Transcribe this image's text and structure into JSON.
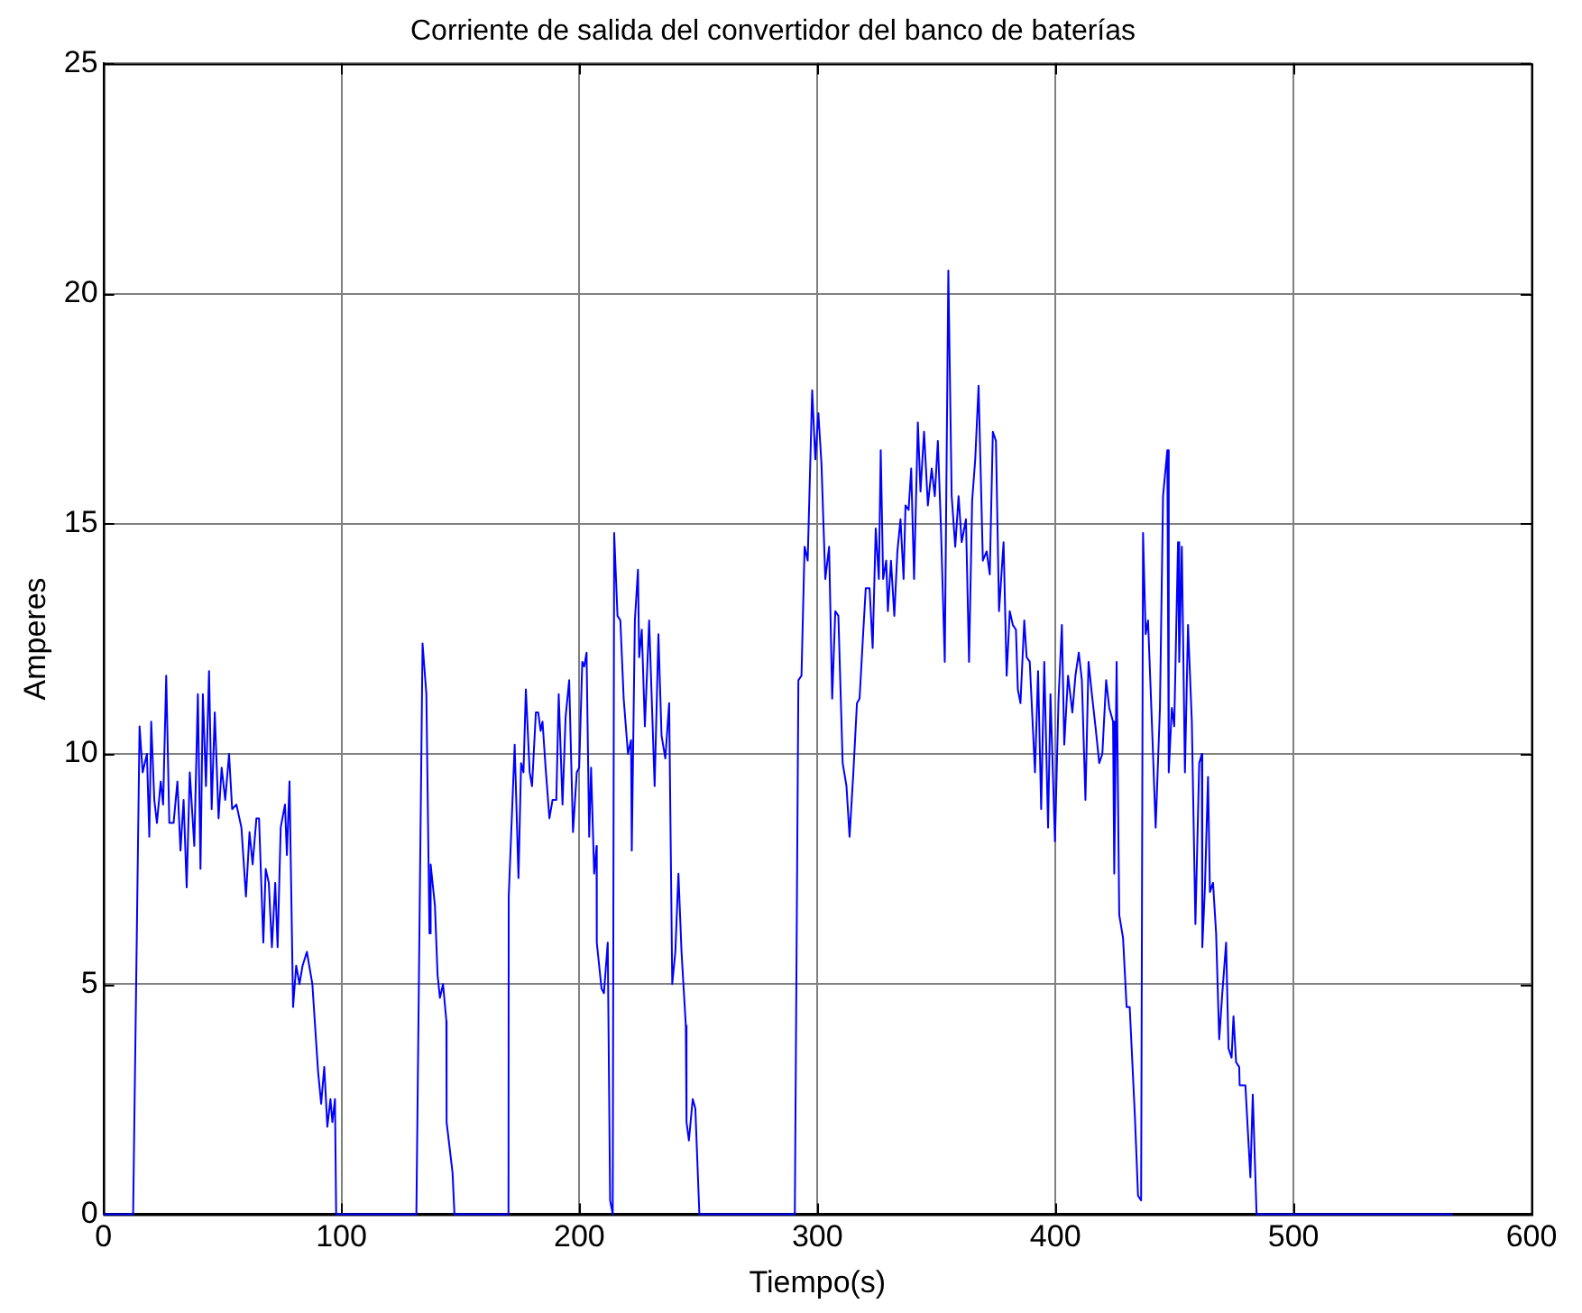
{
  "chart_data": {
    "type": "line",
    "title": "Corriente de salida del convertidor del banco de baterías",
    "xlabel": "Tiempo(s)",
    "ylabel": "Amperes",
    "xlim": [
      0,
      600
    ],
    "xticks": [
      0,
      100,
      200,
      300,
      400,
      500,
      600
    ],
    "ylim": [
      0,
      25
    ],
    "yticks": [
      0,
      5,
      10,
      15,
      20,
      25
    ],
    "grid": true,
    "legend": false,
    "marker": "none",
    "line_style": "solid",
    "series": [
      {
        "color": "#0000ff",
        "x": [
          0,
          12.5,
          15.2,
          16.5,
          18.3,
          19.3,
          20.1,
          21.4,
          22.5,
          24.1,
          25.1,
          26.4,
          27.7,
          29.5,
          31.1,
          32.4,
          33.7,
          35.0,
          36.3,
          38.2,
          39.7,
          40.8,
          41.8,
          43.1,
          44.4,
          45.5,
          46.8,
          48.4,
          49.7,
          51.2,
          52.8,
          54.1,
          55.9,
          58.0,
          59.9,
          61.4,
          62.7,
          64.3,
          65.4,
          67.2,
          68.2,
          69.5,
          70.8,
          72.2,
          73.2,
          74.5,
          76.3,
          77.1,
          78.2,
          79.7,
          81.0,
          82.4,
          83.7,
          85.5,
          87.8,
          90.2,
          91.5,
          92.8,
          94.1,
          95.4,
          96.2,
          97.3,
          97.8,
          131.5,
          134.1,
          135.7,
          137.0,
          137.5,
          139.3,
          140.4,
          141.4,
          142.7,
          144.1,
          144.2,
          146.7,
          147.5,
          170.2,
          170.3,
          172.8,
          174.4,
          175.5,
          176.5,
          177.5,
          179.1,
          180.1,
          181.7,
          182.7,
          183.7,
          184.5,
          185.8,
          187.4,
          188.7,
          190.3,
          191.3,
          192.9,
          194.2,
          195.7,
          197.3,
          198.9,
          199.9,
          201.2,
          202.0,
          203.0,
          204.1,
          204.9,
          206.2,
          207.2,
          207.3,
          209.3,
          210.3,
          211.9,
          212.9,
          214.0,
          214.6,
          216.0,
          217.2,
          218.6,
          220.4,
          221.7,
          222.0,
          223.3,
          224.6,
          225.1,
          226.2,
          227.5,
          229.3,
          231.6,
          233.2,
          234.5,
          236.1,
          237.7,
          239.0,
          240.3,
          241.6,
          242.9,
          244.7,
          245.0,
          246.0,
          247.6,
          248.7,
          250.4,
          290.5,
          292.0,
          293.3,
          294.6,
          295.9,
          297.8,
          299.1,
          300.4,
          301.7,
          303.3,
          304.9,
          306.2,
          307.5,
          308.8,
          310.6,
          312.2,
          313.5,
          315.1,
          316.6,
          317.7,
          319.3,
          320.3,
          321.9,
          323.2,
          324.5,
          325.8,
          326.6,
          327.6,
          328.9,
          329.6,
          330.9,
          332.3,
          333.6,
          334.9,
          336.2,
          337.0,
          338.3,
          339.4,
          340.6,
          342.2,
          343.3,
          344.8,
          346.4,
          348.0,
          349.3,
          350.6,
          351.9,
          353.5,
          355.0,
          356.4,
          357.9,
          359.3,
          360.6,
          362.4,
          363.7,
          365.0,
          366.3,
          367.7,
          369.5,
          371.1,
          372.4,
          373.7,
          375.0,
          376.3,
          378.2,
          379.5,
          380.8,
          382.1,
          383.4,
          384.2,
          385.3,
          386.9,
          387.9,
          389.2,
          391.4,
          392.7,
          394.0,
          395.3,
          396.9,
          397.9,
          399.8,
          401.3,
          402.7,
          403.7,
          405.3,
          407.1,
          408.4,
          409.8,
          411.1,
          412.6,
          413.9,
          415.3,
          416.8,
          418.4,
          419.7,
          421.3,
          422.6,
          424.2,
          424.7,
          425.7,
          426.8,
          428.4,
          429.9,
          431.2,
          433.4,
          434.7,
          436.0,
          436.8,
          437.9,
          438.9,
          440.5,
          442.1,
          443.9,
          445.2,
          447.0,
          447.6,
          448.9,
          449.9,
          451.5,
          452.0,
          453.1,
          454.4,
          455.7,
          457.3,
          458.8,
          460.4,
          461.5,
          461.7,
          462.8,
          464.1,
          464.9,
          466.2,
          467.5,
          468.8,
          470.1,
          471.7,
          472.7,
          474.0,
          474.8,
          475.9,
          477.2,
          477.4,
          479.8,
          481.9,
          482.9,
          484.5,
          567
        ],
        "values": [
          0,
          0,
          10.6,
          9.6,
          10.0,
          8.2,
          10.7,
          9.0,
          8.5,
          9.4,
          8.9,
          11.7,
          8.5,
          8.5,
          9.4,
          7.9,
          9.0,
          7.1,
          9.6,
          8.0,
          11.3,
          7.5,
          11.3,
          9.3,
          11.8,
          8.8,
          10.9,
          8.6,
          9.7,
          9.0,
          10.0,
          8.8,
          8.9,
          8.4,
          6.9,
          8.3,
          7.6,
          8.6,
          8.6,
          5.9,
          7.5,
          7.2,
          5.8,
          7.2,
          5.8,
          8.4,
          8.9,
          7.8,
          9.4,
          4.5,
          5.4,
          5.0,
          5.4,
          5.7,
          5.0,
          3.1,
          2.4,
          3.2,
          1.9,
          2.5,
          2.0,
          2.5,
          0,
          0,
          12.4,
          11.3,
          6.1,
          7.6,
          6.7,
          5.2,
          4.7,
          5.0,
          4.2,
          2.0,
          0.9,
          0,
          0,
          6.9,
          10.2,
          7.3,
          9.8,
          9.6,
          11.4,
          9.6,
          9.3,
          10.9,
          10.9,
          10.5,
          10.7,
          9.7,
          8.6,
          9.0,
          9.0,
          11.3,
          8.9,
          10.8,
          11.6,
          8.3,
          9.6,
          9.7,
          12.0,
          11.9,
          12.2,
          8.2,
          9.7,
          7.4,
          8.0,
          5.9,
          4.9,
          4.8,
          5.9,
          0.3,
          0,
          14.8,
          13.0,
          12.9,
          11.2,
          10.0,
          10.3,
          7.9,
          12.9,
          14.0,
          12.1,
          12.7,
          10.6,
          12.9,
          9.3,
          12.6,
          10.4,
          9.9,
          11.1,
          5.0,
          5.7,
          7.4,
          5.7,
          4.1,
          2.0,
          1.6,
          2.5,
          2.3,
          0,
          0,
          11.6,
          11.7,
          14.5,
          14.2,
          17.9,
          16.4,
          17.4,
          16.3,
          13.8,
          14.5,
          11.2,
          13.1,
          13.0,
          9.8,
          9.3,
          8.2,
          9.6,
          11.1,
          11.2,
          12.7,
          13.6,
          13.6,
          12.3,
          14.9,
          13.8,
          16.6,
          13.8,
          14.2,
          13.1,
          14.2,
          13.0,
          14.4,
          15.1,
          13.8,
          15.4,
          15.3,
          16.2,
          13.8,
          17.2,
          15.7,
          17.0,
          15.4,
          16.2,
          15.6,
          16.8,
          14.9,
          12.0,
          20.5,
          15.6,
          14.5,
          15.6,
          14.6,
          15.1,
          12.0,
          15.5,
          16.4,
          18.0,
          14.2,
          14.4,
          13.9,
          17.0,
          16.8,
          13.1,
          14.6,
          11.7,
          13.1,
          12.8,
          12.7,
          11.4,
          11.1,
          12.9,
          12.1,
          12.0,
          9.6,
          11.8,
          8.8,
          12.0,
          8.4,
          11.3,
          8.1,
          11.2,
          12.8,
          10.2,
          11.7,
          10.9,
          11.7,
          12.2,
          11.6,
          9.0,
          12.0,
          11.3,
          10.6,
          9.8,
          10.0,
          11.6,
          11.0,
          10.7,
          7.4,
          12.0,
          6.5,
          6.0,
          4.5,
          4.5,
          2.1,
          0.4,
          0.3,
          14.8,
          12.6,
          12.9,
          10.7,
          8.4,
          11.0,
          15.6,
          16.6,
          9.6,
          11.0,
          10.6,
          14.6,
          12.0,
          14.5,
          9.6,
          12.8,
          10.7,
          6.3,
          9.8,
          10.0,
          5.8,
          7.1,
          9.5,
          7.0,
          7.2,
          6.1,
          3.8,
          4.8,
          5.9,
          3.6,
          3.4,
          4.3,
          3.3,
          3.2,
          2.8,
          2.8,
          0.8,
          2.6,
          0,
          0
        ]
      }
    ]
  }
}
